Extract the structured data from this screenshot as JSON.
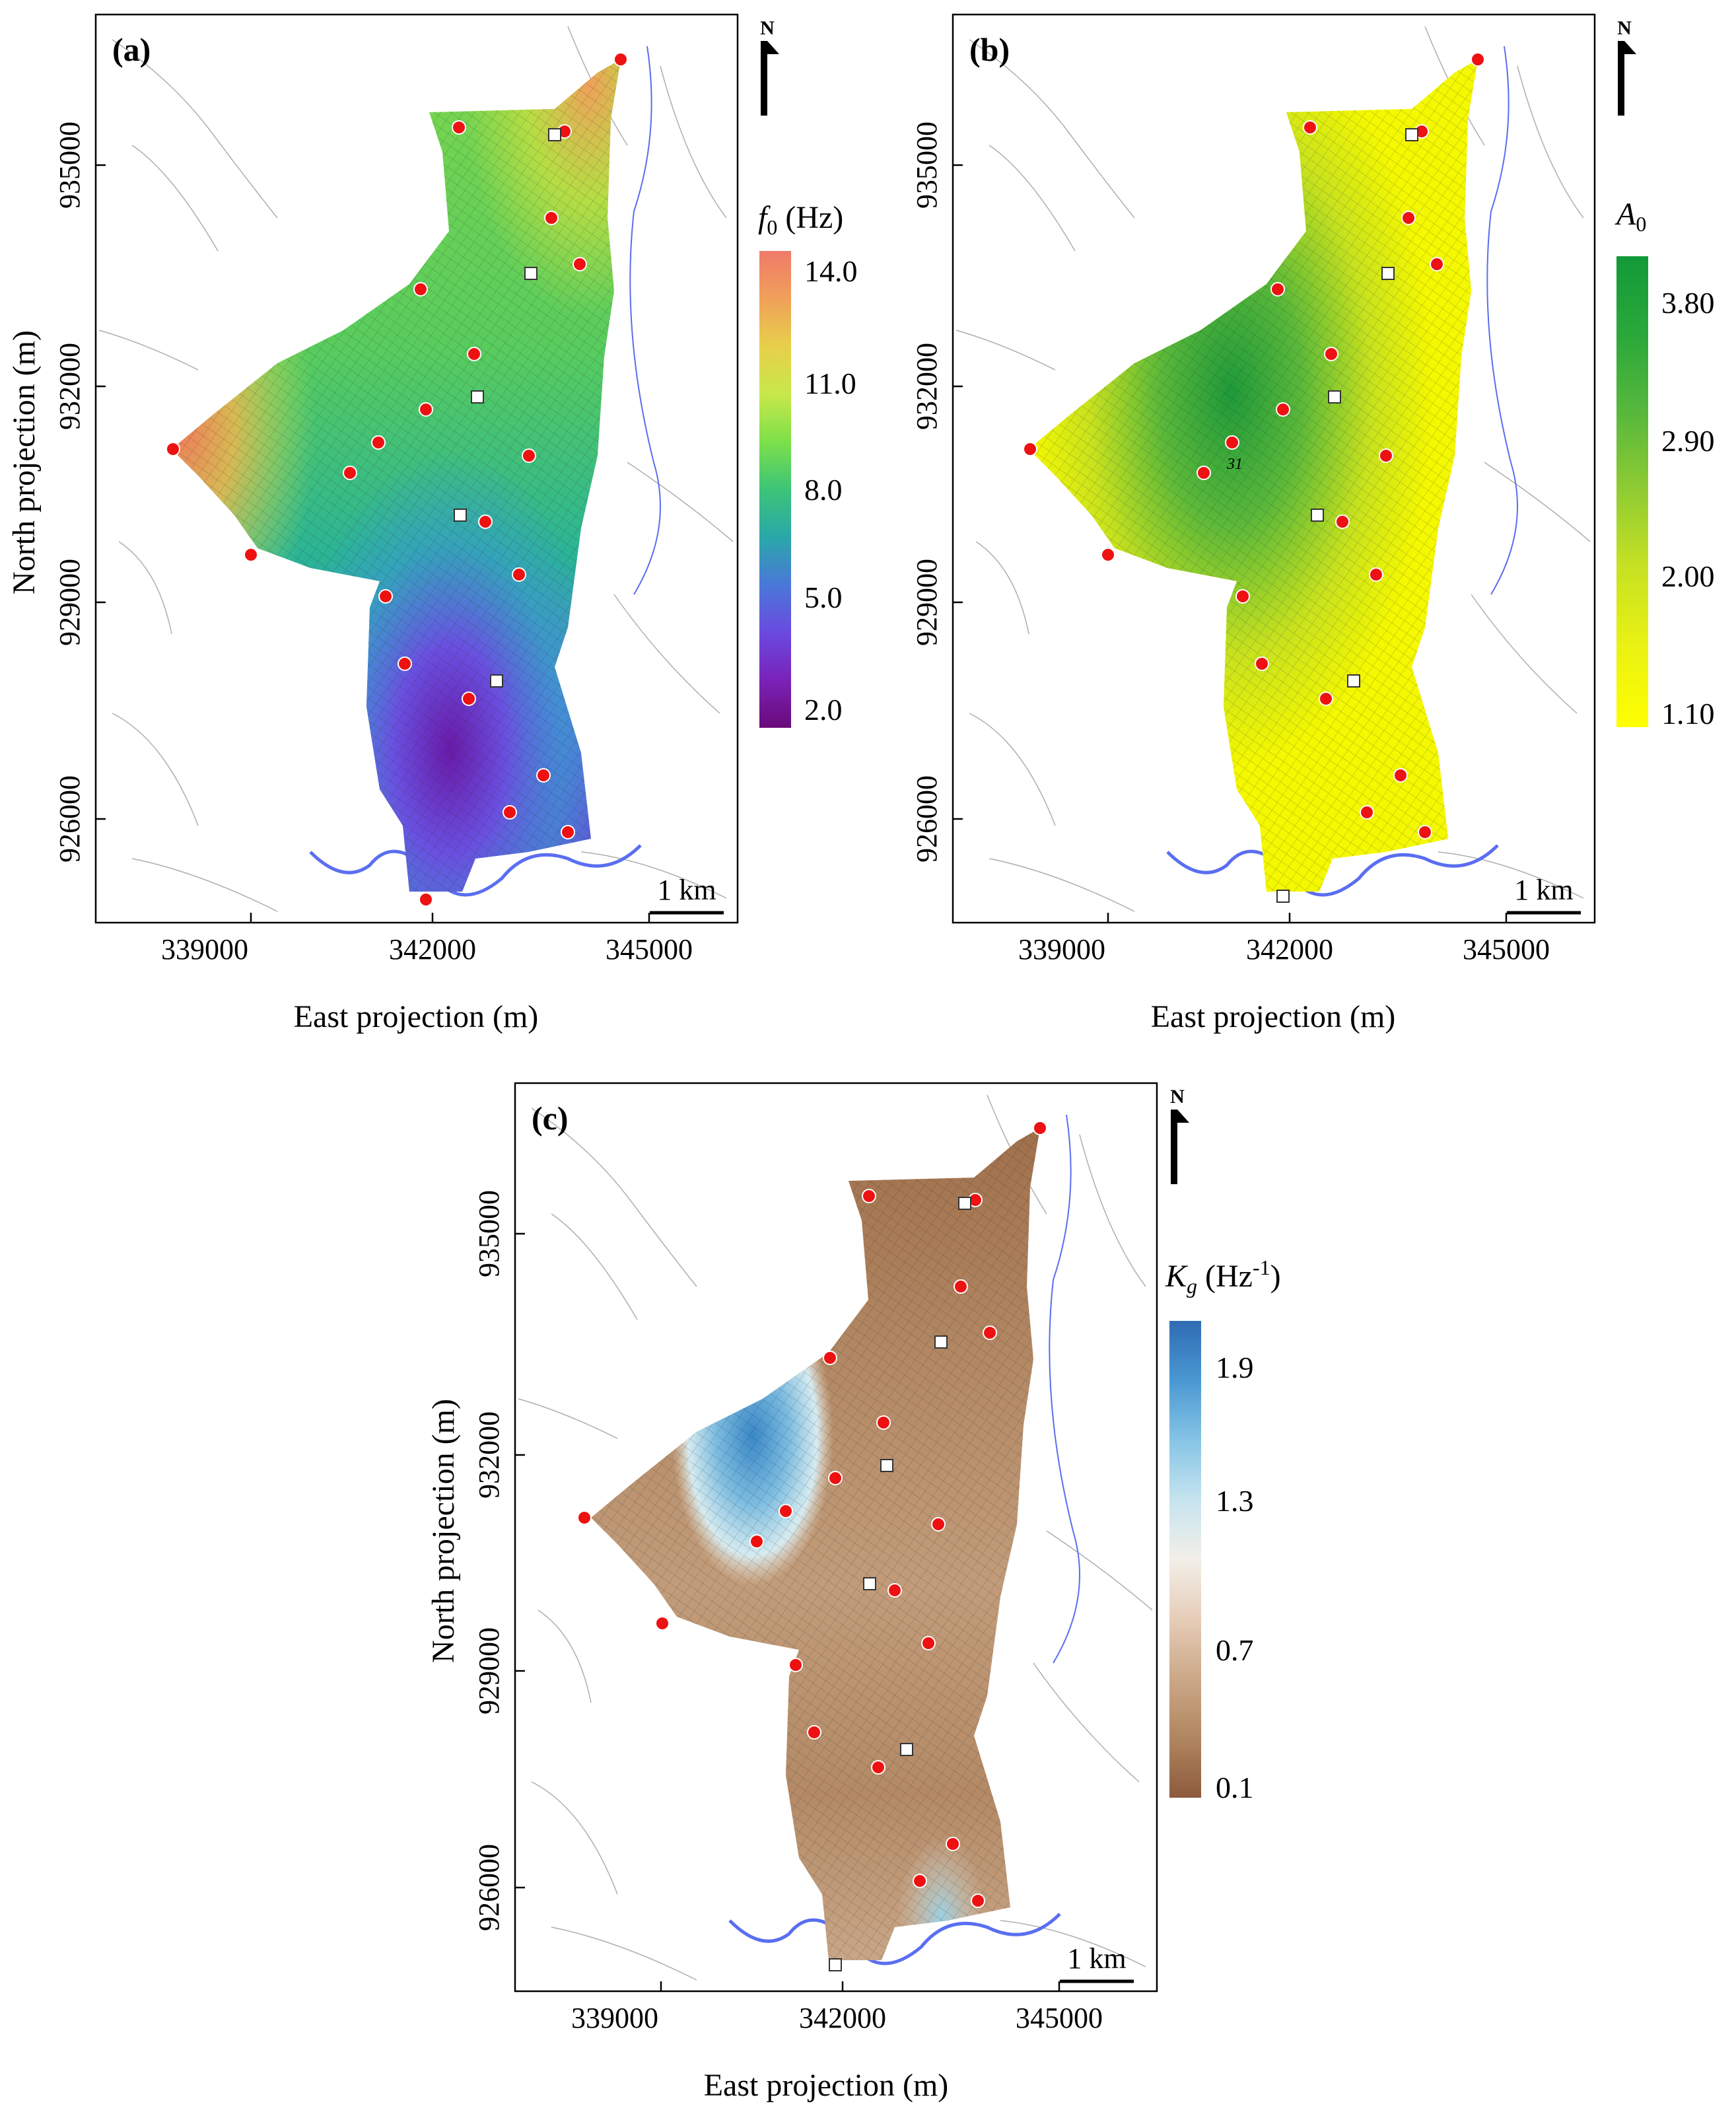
{
  "figure": {
    "scale_bar_label": "1 km",
    "north_label": "N",
    "x_axis": {
      "label": "East projection (m)",
      "ticks": [
        "339000",
        "342000",
        "345000"
      ]
    },
    "y_axis": {
      "label": "North projection (m)",
      "ticks": [
        "935000",
        "932000",
        "929000",
        "926000"
      ]
    },
    "annotation_label": "31",
    "panels": [
      {
        "id": "a",
        "panel_label": "(a)",
        "variable": "f0",
        "colorbar_title_symbol": "f",
        "colorbar_title_subscript": "0",
        "colorbar_title_suffix": " (Hz)",
        "colorbar_ticks": [
          "14.0",
          "11.0",
          "8.0",
          "5.0",
          "2.0"
        ],
        "colormap": [
          "#f07a6a",
          "#f0a05a",
          "#e8cf4a",
          "#c8e84a",
          "#7de04a",
          "#3cc478",
          "#2aa8a8",
          "#4a78d8",
          "#6a4ae0",
          "#7a22b8",
          "#6a0a7a"
        ]
      },
      {
        "id": "b",
        "panel_label": "(b)",
        "variable": "A0",
        "colorbar_title_symbol": "A",
        "colorbar_title_subscript": "0",
        "colorbar_title_suffix": "",
        "colorbar_ticks": [
          "3.80",
          "2.90",
          "2.00",
          "1.10"
        ],
        "colormap": [
          "#129a38",
          "#2aa83a",
          "#58b83c",
          "#90cc32",
          "#c8e222",
          "#eaf212",
          "#ffff00"
        ]
      },
      {
        "id": "c",
        "panel_label": "(c)",
        "variable": "Kg",
        "colorbar_title_symbol": "K",
        "colorbar_title_subscript": "g",
        "colorbar_title_suffix": " (Hz",
        "colorbar_title_superscript": "-1",
        "colorbar_title_close": ")",
        "colorbar_ticks": [
          "1.9",
          "1.3",
          "0.7",
          "0.1"
        ],
        "colormap": [
          "#2f6cb4",
          "#4a98d2",
          "#86c4e6",
          "#c6e4ef",
          "#f2efe8",
          "#e6cdb8",
          "#cca888",
          "#b08660",
          "#8c5a3c"
        ]
      }
    ]
  }
}
